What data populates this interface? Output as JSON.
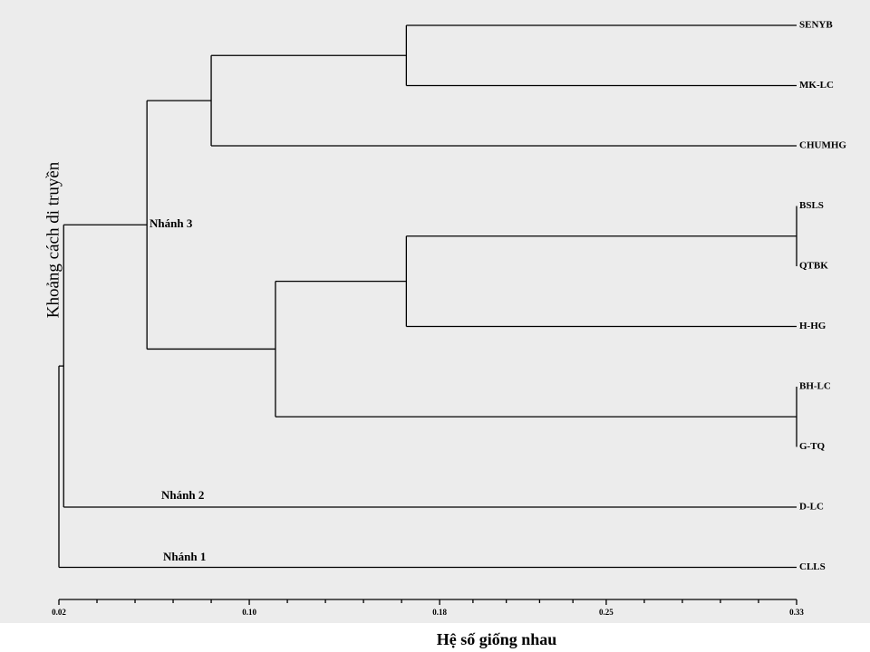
{
  "title_y": "Khoảng cách di truyền",
  "title_x": "Hệ số giống nhau",
  "xlim": [
    0.02,
    0.33
  ],
  "xticks": [
    0.02,
    {
      "value": 0.1,
      "label": "0.10"
    },
    0.18,
    0.25,
    0.33
  ],
  "branch_labels": [
    "Nhánh 3",
    "Nhánh 2",
    "Nhánh 1"
  ],
  "tree": {
    "height": 0.02,
    "children": [
      {
        "height": 0.022,
        "children": [
          {
            "height": 0.057,
            "children": [
              {
                "height": 0.084,
                "children": [
                  {
                    "height": 0.166,
                    "children": [
                      {
                        "label": "SENYB"
                      },
                      {
                        "label": "MK-LC"
                      }
                    ]
                  },
                  {
                    "label": "CHUMHG"
                  }
                ]
              },
              {
                "height": 0.111,
                "children": [
                  {
                    "height": 0.166,
                    "children": [
                      {
                        "height": 0.33,
                        "children": [
                          {
                            "label": "BSLS"
                          },
                          {
                            "label": "QTBK"
                          }
                        ]
                      },
                      {
                        "label": "H-HG"
                      }
                    ]
                  },
                  {
                    "height": 0.33,
                    "children": [
                      {
                        "label": "BH-LC"
                      },
                      {
                        "label": "G-TQ"
                      }
                    ]
                  }
                ]
              }
            ]
          },
          {
            "label": "D-LC"
          }
        ]
      },
      {
        "label": "CLLS"
      }
    ]
  }
}
